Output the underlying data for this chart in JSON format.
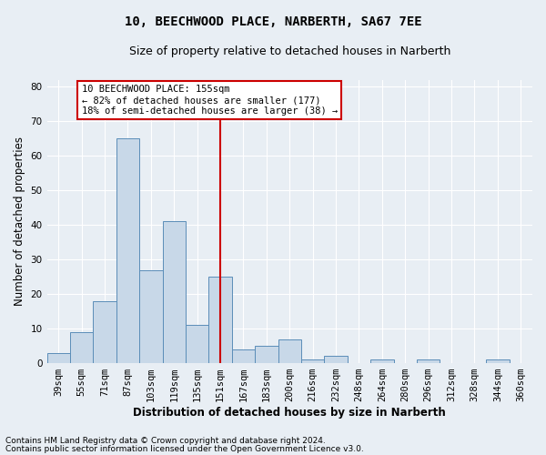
{
  "title": "10, BEECHWOOD PLACE, NARBERTH, SA67 7EE",
  "subtitle": "Size of property relative to detached houses in Narberth",
  "xlabel": "Distribution of detached houses by size in Narberth",
  "ylabel": "Number of detached properties",
  "bins": [
    "39sqm",
    "55sqm",
    "71sqm",
    "87sqm",
    "103sqm",
    "119sqm",
    "135sqm",
    "151sqm",
    "167sqm",
    "183sqm",
    "200sqm",
    "216sqm",
    "232sqm",
    "248sqm",
    "264sqm",
    "280sqm",
    "296sqm",
    "312sqm",
    "328sqm",
    "344sqm",
    "360sqm"
  ],
  "counts": [
    3,
    9,
    18,
    65,
    27,
    41,
    11,
    25,
    4,
    5,
    7,
    1,
    2,
    0,
    1,
    0,
    1,
    0,
    0,
    1,
    0
  ],
  "bar_color": "#c8d8e8",
  "bar_edge_color": "#5b8db8",
  "vline_x_bin": 7,
  "vline_color": "#cc0000",
  "ylim": [
    0,
    82
  ],
  "yticks": [
    0,
    10,
    20,
    30,
    40,
    50,
    60,
    70,
    80
  ],
  "annotation_text": "10 BEECHWOOD PLACE: 155sqm\n← 82% of detached houses are smaller (177)\n18% of semi-detached houses are larger (38) →",
  "annotation_box_color": "#ffffff",
  "annotation_box_edge": "#cc0000",
  "footer_line1": "Contains HM Land Registry data © Crown copyright and database right 2024.",
  "footer_line2": "Contains public sector information licensed under the Open Government Licence v3.0.",
  "background_color": "#e8eef4",
  "grid_color": "#ffffff",
  "title_fontsize": 10,
  "subtitle_fontsize": 9,
  "axis_label_fontsize": 8.5,
  "tick_fontsize": 7.5,
  "annotation_fontsize": 7.5,
  "footer_fontsize": 6.5
}
